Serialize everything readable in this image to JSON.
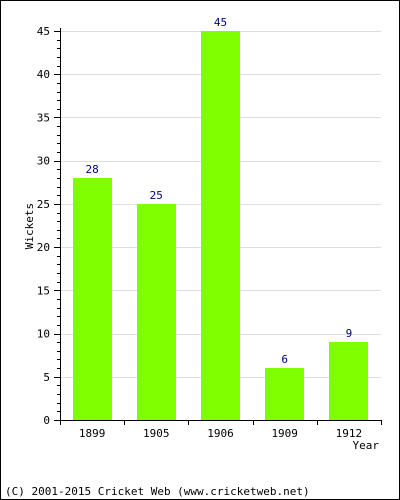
{
  "chart_data": {
    "type": "bar",
    "categories": [
      "1899",
      "1905",
      "1906",
      "1909",
      "1912"
    ],
    "values": [
      28,
      25,
      45,
      6,
      9
    ],
    "data_labels": [
      "28",
      "25",
      "45",
      "6",
      "9"
    ],
    "title": "",
    "xlabel": "Year",
    "ylabel": "Wickets",
    "ylim": [
      0,
      45
    ],
    "yticks": [
      "0",
      "5",
      "10",
      "15",
      "20",
      "25",
      "30",
      "35",
      "40",
      "45"
    ],
    "grid": true,
    "bar_color": "#80ff00",
    "label_color": "#000080"
  },
  "footer": {
    "copyright": "(C) 2001-2015 Cricket Web (www.cricketweb.net)"
  }
}
